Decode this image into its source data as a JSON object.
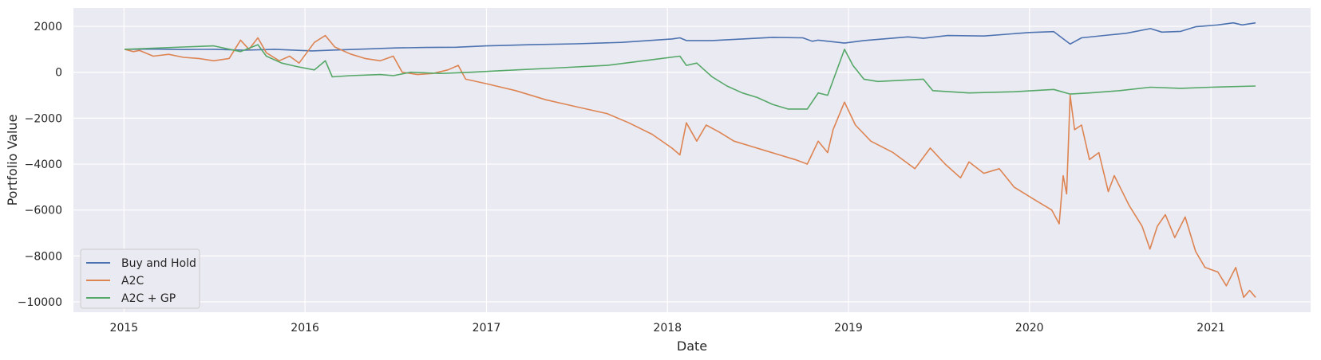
{
  "chart_data": {
    "type": "line",
    "title": "",
    "xlabel": "Date",
    "ylabel": "Portfolio Value",
    "xlim": [
      "2014-09-21",
      "2021-07-21"
    ],
    "ylim": [
      -10450,
      2800
    ],
    "x_ticks": [
      "2015",
      "2016",
      "2017",
      "2018",
      "2019",
      "2020",
      "2021"
    ],
    "y_ticks": [
      2000,
      0,
      -2000,
      -4000,
      -6000,
      -8000,
      -10000
    ],
    "y_tick_labels": [
      "2000",
      "0",
      "−2000",
      "−4000",
      "−6000",
      "−8000",
      "−10000"
    ],
    "grid": true,
    "legend": {
      "position": "lower-left"
    },
    "series": [
      {
        "name": "Buy and Hold",
        "color": "#4c72b0",
        "points": [
          [
            "2015-01-02",
            1000
          ],
          [
            "2015-03-01",
            1010
          ],
          [
            "2015-05-01",
            990
          ],
          [
            "2015-07-01",
            1000
          ],
          [
            "2015-09-01",
            960
          ],
          [
            "2015-11-01",
            1000
          ],
          [
            "2016-01-15",
            930
          ],
          [
            "2016-03-01",
            970
          ],
          [
            "2016-05-01",
            1010
          ],
          [
            "2016-07-01",
            1060
          ],
          [
            "2016-09-01",
            1080
          ],
          [
            "2016-11-01",
            1090
          ],
          [
            "2017-01-01",
            1150
          ],
          [
            "2017-04-01",
            1200
          ],
          [
            "2017-07-01",
            1240
          ],
          [
            "2017-10-01",
            1300
          ],
          [
            "2018-01-10",
            1450
          ],
          [
            "2018-01-26",
            1500
          ],
          [
            "2018-02-08",
            1380
          ],
          [
            "2018-04-01",
            1380
          ],
          [
            "2018-06-01",
            1450
          ],
          [
            "2018-08-01",
            1520
          ],
          [
            "2018-10-01",
            1500
          ],
          [
            "2018-10-20",
            1350
          ],
          [
            "2018-11-01",
            1400
          ],
          [
            "2018-12-24",
            1270
          ],
          [
            "2019-02-01",
            1380
          ],
          [
            "2019-05-01",
            1540
          ],
          [
            "2019-06-01",
            1480
          ],
          [
            "2019-07-20",
            1600
          ],
          [
            "2019-10-01",
            1580
          ],
          [
            "2020-01-01",
            1730
          ],
          [
            "2020-02-19",
            1770
          ],
          [
            "2020-03-23",
            1230
          ],
          [
            "2020-04-15",
            1500
          ],
          [
            "2020-06-08",
            1620
          ],
          [
            "2020-07-15",
            1700
          ],
          [
            "2020-09-01",
            1900
          ],
          [
            "2020-09-24",
            1750
          ],
          [
            "2020-11-01",
            1780
          ],
          [
            "2020-12-01",
            1980
          ],
          [
            "2021-01-15",
            2060
          ],
          [
            "2021-02-15",
            2150
          ],
          [
            "2021-03-05",
            2060
          ],
          [
            "2021-04-01",
            2150
          ]
        ]
      },
      {
        "name": "A2C",
        "color": "#dd8452",
        "points": [
          [
            "2015-01-02",
            1000
          ],
          [
            "2015-01-20",
            900
          ],
          [
            "2015-02-01",
            950
          ],
          [
            "2015-03-01",
            700
          ],
          [
            "2015-04-01",
            780
          ],
          [
            "2015-05-01",
            650
          ],
          [
            "2015-06-01",
            600
          ],
          [
            "2015-07-01",
            500
          ],
          [
            "2015-08-01",
            600
          ],
          [
            "2015-08-24",
            1400
          ],
          [
            "2015-09-10",
            1000
          ],
          [
            "2015-09-28",
            1500
          ],
          [
            "2015-10-15",
            850
          ],
          [
            "2015-11-10",
            500
          ],
          [
            "2015-12-01",
            700
          ],
          [
            "2015-12-20",
            400
          ],
          [
            "2016-01-20",
            1300
          ],
          [
            "2016-02-11",
            1600
          ],
          [
            "2016-03-01",
            1100
          ],
          [
            "2016-04-01",
            800
          ],
          [
            "2016-05-01",
            600
          ],
          [
            "2016-06-01",
            500
          ],
          [
            "2016-06-27",
            700
          ],
          [
            "2016-07-15",
            0
          ],
          [
            "2016-08-15",
            -100
          ],
          [
            "2016-09-15",
            -50
          ],
          [
            "2016-10-15",
            100
          ],
          [
            "2016-11-05",
            300
          ],
          [
            "2016-11-20",
            -300
          ],
          [
            "2017-01-01",
            -500
          ],
          [
            "2017-03-01",
            -800
          ],
          [
            "2017-05-01",
            -1200
          ],
          [
            "2017-07-01",
            -1500
          ],
          [
            "2017-09-01",
            -1800
          ],
          [
            "2017-10-15",
            -2200
          ],
          [
            "2017-12-01",
            -2700
          ],
          [
            "2018-01-10",
            -3300
          ],
          [
            "2018-01-26",
            -3600
          ],
          [
            "2018-02-08",
            -2200
          ],
          [
            "2018-03-01",
            -3000
          ],
          [
            "2018-03-20",
            -2300
          ],
          [
            "2018-04-15",
            -2600
          ],
          [
            "2018-05-15",
            -3000
          ],
          [
            "2018-06-15",
            -3200
          ],
          [
            "2018-07-15",
            -3400
          ],
          [
            "2018-08-15",
            -3600
          ],
          [
            "2018-09-15",
            -3800
          ],
          [
            "2018-10-10",
            -4000
          ],
          [
            "2018-11-01",
            -3000
          ],
          [
            "2018-11-20",
            -3500
          ],
          [
            "2018-12-01",
            -2500
          ],
          [
            "2018-12-24",
            -1300
          ],
          [
            "2019-01-15",
            -2300
          ],
          [
            "2019-02-15",
            -3000
          ],
          [
            "2019-04-01",
            -3500
          ],
          [
            "2019-05-15",
            -4200
          ],
          [
            "2019-06-15",
            -3300
          ],
          [
            "2019-07-15",
            -4000
          ],
          [
            "2019-08-15",
            -4600
          ],
          [
            "2019-09-01",
            -3900
          ],
          [
            "2019-10-01",
            -4400
          ],
          [
            "2019-11-01",
            -4200
          ],
          [
            "2019-12-01",
            -5000
          ],
          [
            "2020-01-15",
            -5600
          ],
          [
            "2020-02-15",
            -6000
          ],
          [
            "2020-03-01",
            -6600
          ],
          [
            "2020-03-09",
            -4500
          ],
          [
            "2020-03-16",
            -5300
          ],
          [
            "2020-03-23",
            -1000
          ],
          [
            "2020-04-01",
            -2500
          ],
          [
            "2020-04-15",
            -2300
          ],
          [
            "2020-05-01",
            -3800
          ],
          [
            "2020-05-20",
            -3500
          ],
          [
            "2020-06-08",
            -5200
          ],
          [
            "2020-06-20",
            -4500
          ],
          [
            "2020-07-20",
            -5800
          ],
          [
            "2020-08-15",
            -6700
          ],
          [
            "2020-08-31",
            -7700
          ],
          [
            "2020-09-15",
            -6700
          ],
          [
            "2020-10-01",
            -6200
          ],
          [
            "2020-10-20",
            -7200
          ],
          [
            "2020-11-10",
            -6300
          ],
          [
            "2020-12-01",
            -7800
          ],
          [
            "2020-12-20",
            -8500
          ],
          [
            "2021-01-15",
            -8700
          ],
          [
            "2021-02-01",
            -9300
          ],
          [
            "2021-02-20",
            -8500
          ],
          [
            "2021-03-08",
            -9800
          ],
          [
            "2021-03-20",
            -9500
          ],
          [
            "2021-04-01",
            -9800
          ]
        ]
      },
      {
        "name": "A2C + GP",
        "color": "#55a868",
        "points": [
          [
            "2015-01-02",
            1000
          ],
          [
            "2015-03-01",
            1050
          ],
          [
            "2015-05-01",
            1100
          ],
          [
            "2015-07-01",
            1150
          ],
          [
            "2015-08-24",
            900
          ],
          [
            "2015-09-28",
            1200
          ],
          [
            "2015-10-15",
            700
          ],
          [
            "2015-11-15",
            400
          ],
          [
            "2015-12-15",
            250
          ],
          [
            "2016-01-20",
            100
          ],
          [
            "2016-02-11",
            500
          ],
          [
            "2016-02-25",
            -200
          ],
          [
            "2016-04-01",
            -150
          ],
          [
            "2016-06-01",
            -100
          ],
          [
            "2016-06-27",
            -150
          ],
          [
            "2016-08-01",
            0
          ],
          [
            "2016-10-01",
            -50
          ],
          [
            "2016-12-01",
            0
          ],
          [
            "2017-03-01",
            100
          ],
          [
            "2017-06-01",
            200
          ],
          [
            "2017-09-01",
            300
          ],
          [
            "2017-12-01",
            550
          ],
          [
            "2018-01-26",
            700
          ],
          [
            "2018-02-08",
            300
          ],
          [
            "2018-03-01",
            400
          ],
          [
            "2018-04-01",
            -200
          ],
          [
            "2018-05-01",
            -600
          ],
          [
            "2018-06-01",
            -900
          ],
          [
            "2018-07-01",
            -1100
          ],
          [
            "2018-08-01",
            -1400
          ],
          [
            "2018-09-01",
            -1600
          ],
          [
            "2018-10-10",
            -1600
          ],
          [
            "2018-11-01",
            -900
          ],
          [
            "2018-11-20",
            -1000
          ],
          [
            "2018-12-24",
            1000
          ],
          [
            "2019-01-10",
            300
          ],
          [
            "2019-02-01",
            -300
          ],
          [
            "2019-03-01",
            -400
          ],
          [
            "2019-06-01",
            -300
          ],
          [
            "2019-06-20",
            -800
          ],
          [
            "2019-09-01",
            -900
          ],
          [
            "2019-12-01",
            -850
          ],
          [
            "2020-02-19",
            -750
          ],
          [
            "2020-03-23",
            -950
          ],
          [
            "2020-05-01",
            -900
          ],
          [
            "2020-07-01",
            -800
          ],
          [
            "2020-09-01",
            -650
          ],
          [
            "2020-11-01",
            -700
          ],
          [
            "2021-01-01",
            -650
          ],
          [
            "2021-04-01",
            -600
          ]
        ]
      }
    ]
  }
}
